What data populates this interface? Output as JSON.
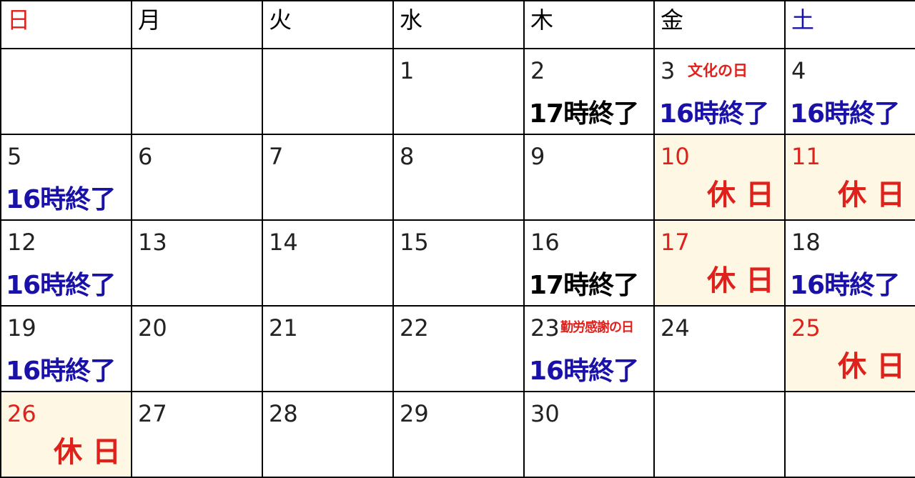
{
  "weekdays": {
    "sun": "日",
    "mon": "月",
    "tue": "火",
    "wed": "水",
    "thu": "木",
    "fri": "金",
    "sat": "土"
  },
  "colors": {
    "sunday_red": "#e0201b",
    "saturday_blue": "#1a12a8",
    "holiday_bg": "#fdf7e3"
  },
  "labels": {
    "close16": "16時終了",
    "close17": "17時終了",
    "closed": "休 日"
  },
  "holiday_names": {
    "d3": "文化の日",
    "d23": "勤労感謝の日"
  },
  "days": {
    "d1": "1",
    "d2": "2",
    "d3": "3",
    "d4": "4",
    "d5": "5",
    "d6": "6",
    "d7": "7",
    "d8": "8",
    "d9": "9",
    "d10": "10",
    "d11": "11",
    "d12": "12",
    "d13": "13",
    "d14": "14",
    "d15": "15",
    "d16": "16",
    "d17": "17",
    "d18": "18",
    "d19": "19",
    "d20": "20",
    "d21": "21",
    "d22": "22",
    "d23": "23",
    "d24": "24",
    "d25": "25",
    "d26": "26",
    "d27": "27",
    "d28": "28",
    "d29": "29",
    "d30": "30"
  }
}
